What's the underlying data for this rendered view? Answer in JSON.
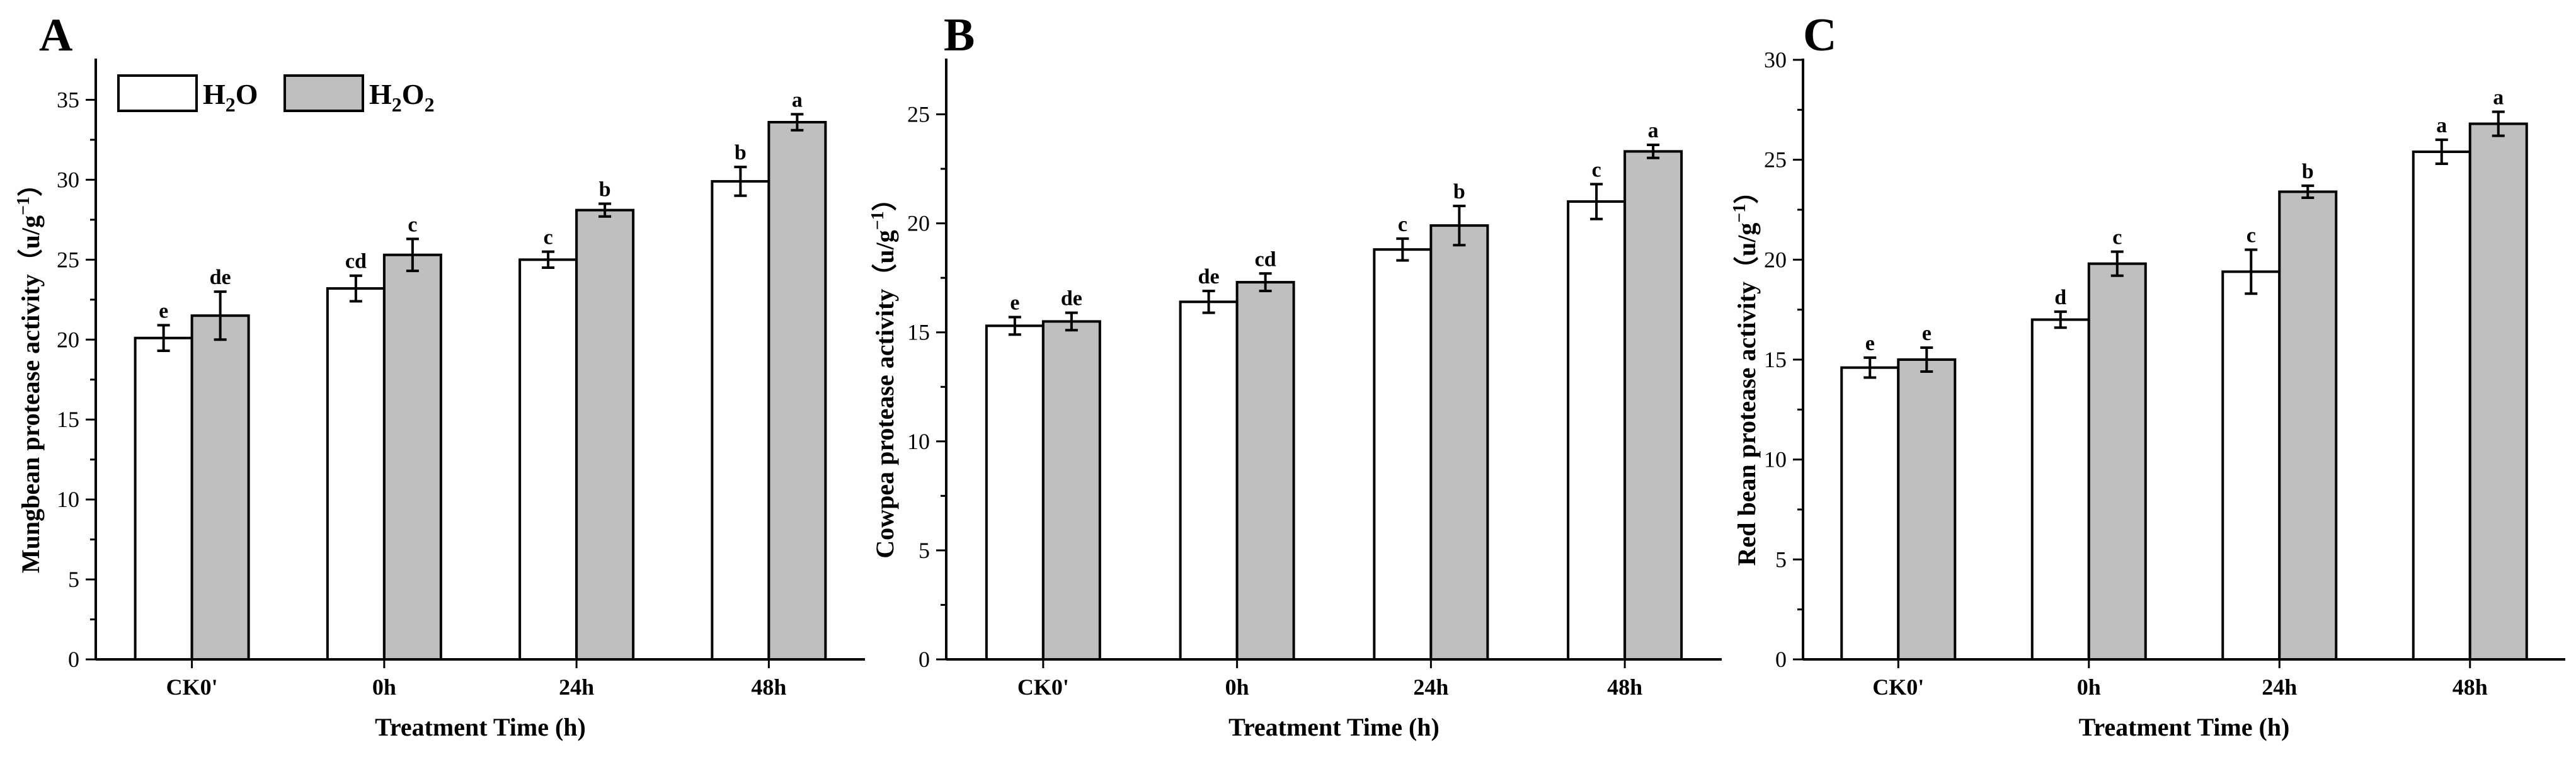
{
  "chart_data": [
    {
      "type": "bar",
      "panel": "A",
      "categories": [
        "CK0'",
        "0h",
        "24h",
        "48h"
      ],
      "series": [
        {
          "name": "H2O",
          "values": [
            20.1,
            23.2,
            25.0,
            29.9
          ],
          "errors": [
            0.8,
            0.8,
            0.5,
            0.9
          ],
          "letters": [
            "e",
            "cd",
            "c",
            "b"
          ]
        },
        {
          "name": "H2O2",
          "values": [
            21.5,
            25.3,
            28.1,
            33.6
          ],
          "errors": [
            1.5,
            1.0,
            0.4,
            0.5
          ],
          "letters": [
            "de",
            "c",
            "b",
            "a"
          ]
        }
      ],
      "xlabel": "Treatment Time (h)",
      "ylabel": "Mungbean protease activity（u/g",
      "ylabel_sup": "−1",
      "ylabel_end": "）",
      "ylim": [
        0,
        37.5
      ],
      "yticks": [
        0,
        5,
        10,
        15,
        20,
        25,
        30,
        35
      ],
      "legend": {
        "position": "top-left",
        "items": [
          {
            "base": "H",
            "sub": "2",
            "rest": "O",
            "sub2": "",
            "color": "#ffffff"
          },
          {
            "base": "H",
            "sub": "2",
            "rest": "O",
            "sub2": "2",
            "color": "#bfbfbf"
          }
        ]
      }
    },
    {
      "type": "bar",
      "panel": "B",
      "categories": [
        "CK0'",
        "0h",
        "24h",
        "48h"
      ],
      "series": [
        {
          "name": "H2O",
          "values": [
            15.3,
            16.4,
            18.8,
            21.0
          ],
          "errors": [
            0.4,
            0.5,
            0.5,
            0.8
          ],
          "letters": [
            "e",
            "de",
            "c",
            "c"
          ]
        },
        {
          "name": "H2O2",
          "values": [
            15.5,
            17.3,
            19.9,
            23.3
          ],
          "errors": [
            0.4,
            0.4,
            0.9,
            0.3
          ],
          "letters": [
            "de",
            "cd",
            "b",
            "a"
          ]
        }
      ],
      "xlabel": "Treatment Time (h)",
      "ylabel": "Cowpea protease activity（u/g",
      "ylabel_sup": "−1",
      "ylabel_end": "）",
      "ylim": [
        0,
        27.5
      ],
      "yticks": [
        0,
        5,
        10,
        15,
        20,
        25
      ]
    },
    {
      "type": "bar",
      "panel": "C",
      "categories": [
        "CK0'",
        "0h",
        "24h",
        "48h"
      ],
      "series": [
        {
          "name": "H2O",
          "values": [
            14.6,
            17.0,
            19.4,
            25.4
          ],
          "errors": [
            0.5,
            0.4,
            1.1,
            0.6
          ],
          "letters": [
            "e",
            "d",
            "c",
            "a"
          ]
        },
        {
          "name": "H2O2",
          "values": [
            15.0,
            19.8,
            23.4,
            26.8
          ],
          "errors": [
            0.6,
            0.6,
            0.3,
            0.6
          ],
          "letters": [
            "e",
            "c",
            "b",
            "a"
          ]
        }
      ],
      "xlabel": "Treatment Time (h)",
      "ylabel": "Red bean protease activity（u/g",
      "ylabel_sup": "−1",
      "ylabel_end": "）",
      "ylim": [
        0,
        30
      ],
      "yticks": [
        0,
        5,
        10,
        15,
        20,
        25,
        30
      ]
    }
  ],
  "colors": {
    "h2o_fill": "#ffffff",
    "h2o2_fill": "#bfbfbf",
    "stroke": "#000000"
  }
}
